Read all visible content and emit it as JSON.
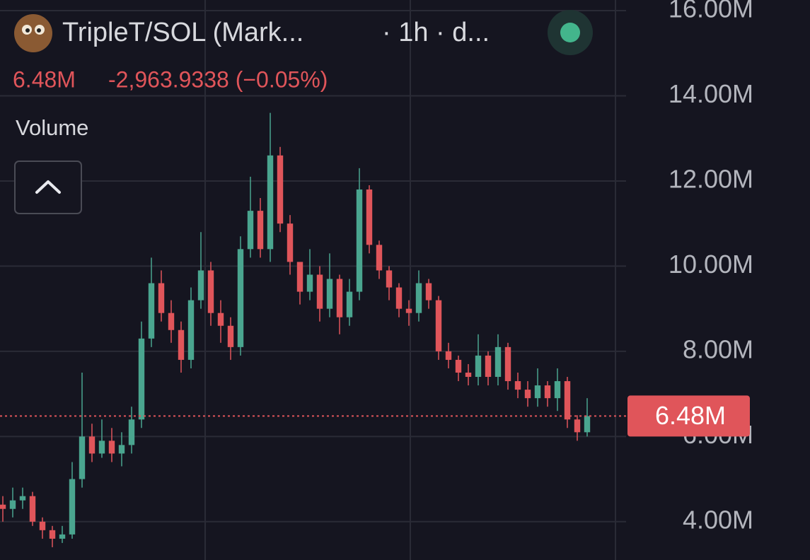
{
  "header": {
    "pair": "TripleT/SOL (Mark...",
    "interval": "· 1h · d...",
    "price": "6.48M",
    "change": "-2,963.9338 (−0.05%)",
    "indicator": "Volume"
  },
  "chart_data": {
    "type": "candlestick",
    "up_color": "#4aa58f",
    "down_color": "#e0555a",
    "grid": true,
    "ylim": [
      3.1,
      16.25
    ],
    "yticks": [
      {
        "value": 4,
        "label": "4.00M"
      },
      {
        "value": 6,
        "label": "6.00M"
      },
      {
        "value": 8,
        "label": "8.00M"
      },
      {
        "value": 10,
        "label": "10.00M"
      },
      {
        "value": 12,
        "label": "12.00M"
      },
      {
        "value": 14,
        "label": "14.00M"
      },
      {
        "value": 16,
        "label": "16.00M"
      }
    ],
    "last_price": {
      "value": 6.48,
      "label": "6.48M"
    },
    "open": [
      4.4,
      4.3,
      4.5,
      4.6,
      4.0,
      3.8,
      3.6,
      3.7,
      5.0,
      6.0,
      5.6,
      5.9,
      5.6,
      5.8,
      6.4,
      8.3,
      9.6,
      8.9,
      8.5,
      7.8,
      9.2,
      9.9,
      8.9,
      8.6,
      8.1,
      10.4,
      11.3,
      10.4,
      12.6,
      11.0,
      10.1,
      9.4,
      9.8,
      9.0,
      9.7,
      8.8,
      9.4,
      11.8,
      10.5,
      9.9,
      9.5,
      9.0,
      8.9,
      9.6,
      9.2,
      8.0,
      7.8,
      7.5,
      7.4,
      7.9,
      7.4,
      8.1,
      7.3,
      7.1,
      6.9,
      7.2,
      6.9,
      7.3,
      6.4,
      6.1
    ],
    "high": [
      4.6,
      4.8,
      4.8,
      4.7,
      4.1,
      3.9,
      3.9,
      5.4,
      7.5,
      6.3,
      6.4,
      6.2,
      6.1,
      6.7,
      8.7,
      10.2,
      9.9,
      9.2,
      8.7,
      9.5,
      10.8,
      10.1,
      9.2,
      8.8,
      10.7,
      12.1,
      11.6,
      13.6,
      12.8,
      11.2,
      10.0,
      10.4,
      10.0,
      10.3,
      9.8,
      9.7,
      12.3,
      11.9,
      10.6,
      10.0,
      9.6,
      9.2,
      9.9,
      9.7,
      9.3,
      8.2,
      7.9,
      7.7,
      8.4,
      8.0,
      8.4,
      8.2,
      7.5,
      7.3,
      7.6,
      7.3,
      7.6,
      7.4,
      6.5,
      6.9
    ],
    "low": [
      4.0,
      4.1,
      4.3,
      3.9,
      3.6,
      3.4,
      3.5,
      3.6,
      4.8,
      5.4,
      5.5,
      5.4,
      5.3,
      5.6,
      6.2,
      8.1,
      8.7,
      8.2,
      7.5,
      7.6,
      9.0,
      8.6,
      8.2,
      7.8,
      7.9,
      10.2,
      10.2,
      10.1,
      10.8,
      9.8,
      9.1,
      9.2,
      8.7,
      8.8,
      8.4,
      8.6,
      9.2,
      10.3,
      9.7,
      9.2,
      8.8,
      8.6,
      8.7,
      9.0,
      7.8,
      7.6,
      7.3,
      7.2,
      7.2,
      7.2,
      7.2,
      7.1,
      6.9,
      6.7,
      6.7,
      6.7,
      6.6,
      6.2,
      5.9,
      6.0
    ],
    "close": [
      4.3,
      4.5,
      4.6,
      4.0,
      3.8,
      3.6,
      3.7,
      5.0,
      6.0,
      5.6,
      5.9,
      5.6,
      5.8,
      6.4,
      8.3,
      9.6,
      8.9,
      8.5,
      7.8,
      9.2,
      9.9,
      8.9,
      8.6,
      8.1,
      10.4,
      11.3,
      10.4,
      12.6,
      11.0,
      10.1,
      9.4,
      9.8,
      9.0,
      9.7,
      8.8,
      9.4,
      11.8,
      10.5,
      9.9,
      9.5,
      9.0,
      8.9,
      9.6,
      9.2,
      8.0,
      7.8,
      7.5,
      7.4,
      7.9,
      7.4,
      8.1,
      7.3,
      7.1,
      6.9,
      7.2,
      6.9,
      7.3,
      6.4,
      6.1,
      6.48
    ]
  }
}
